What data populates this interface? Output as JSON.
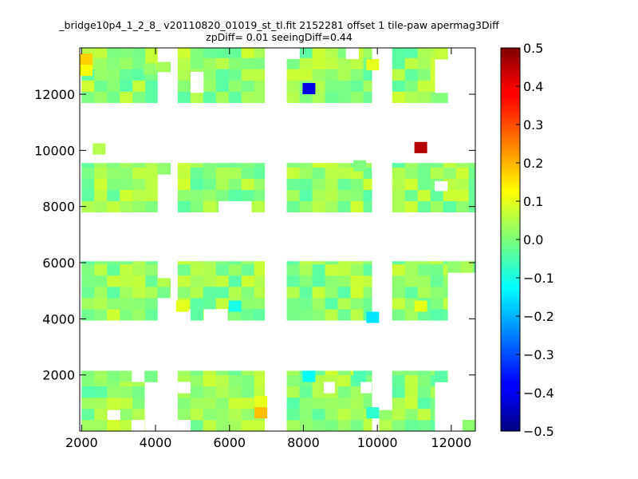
{
  "chart_data": {
    "type": "heatmap",
    "title": {
      "line1": "_bridge10p4_1_2_8_ v20110820_01019_st_tl.fit 2152281 offset 1 tile-paw apermag3Diff",
      "line2": "zpDiff= 0.01 seeingDiff=0.44"
    },
    "xlabel": "",
    "ylabel": "",
    "xlim": [
      1950,
      12650
    ],
    "ylim": [
      0,
      13650
    ],
    "xticks": [
      2000,
      4000,
      6000,
      8000,
      10000,
      12000
    ],
    "xtick_labels": [
      "2000",
      "4000",
      "6000",
      "8000",
      "10000",
      "12000"
    ],
    "yticks": [
      2000,
      4000,
      6000,
      8000,
      10000,
      12000
    ],
    "ytick_labels": [
      "2000",
      "4000",
      "6000",
      "8000",
      "10000",
      "12000"
    ],
    "colorbar": {
      "colormap": "jet",
      "range": [
        -0.5,
        0.5
      ],
      "ticks": [
        -0.5,
        -0.4,
        -0.3,
        -0.2,
        -0.1,
        0.0,
        0.1,
        0.2,
        0.3,
        0.4,
        0.5
      ],
      "tick_labels": [
        "−0.5",
        "−0.4",
        "−0.3",
        "−0.2",
        "−0.1",
        "0.0",
        "0.1",
        "0.2",
        "0.3",
        "0.4",
        "0.5"
      ]
    },
    "grid": false,
    "cell_width": 345,
    "cell_height": 400,
    "cells": [
      {
        "x": 2125,
        "y": 13250,
        "v": 0.17
      },
      {
        "x": 2125,
        "y": 12850,
        "v": 0.12
      },
      {
        "x": 3850,
        "y": 12900,
        "v": 0.02
      },
      {
        "x": 8150,
        "y": 12200,
        "v": -0.4
      },
      {
        "x": 9875,
        "y": 13050,
        "v": 0.1
      },
      {
        "x": 2475,
        "y": 10050,
        "v": 0.05
      },
      {
        "x": 11175,
        "y": 10100,
        "v": 0.45
      },
      {
        "x": 9525,
        "y": 9450,
        "v": 0.0
      },
      {
        "x": 4725,
        "y": 4450,
        "v": 0.1
      },
      {
        "x": 6150,
        "y": 4450,
        "v": -0.1
      },
      {
        "x": 9875,
        "y": 4050,
        "v": -0.15
      },
      {
        "x": 11175,
        "y": 4450,
        "v": 0.1
      },
      {
        "x": 8150,
        "y": 1950,
        "v": -0.12
      },
      {
        "x": 9525,
        "y": 1950,
        "v": -0.05
      },
      {
        "x": 6850,
        "y": 1050,
        "v": 0.1
      },
      {
        "x": 6850,
        "y": 650,
        "v": 0.19
      },
      {
        "x": 9875,
        "y": 650,
        "v": -0.08
      }
    ],
    "blocks": [
      {
        "x0": 2000,
        "x1": 4050,
        "y0": 11700,
        "y1": 13650
      },
      {
        "x0": 4050,
        "x1": 4400,
        "y0": 12800,
        "y1": 13150
      },
      {
        "x0": 4600,
        "x1": 6950,
        "y0": 11700,
        "y1": 13650
      },
      {
        "x0": 7550,
        "x1": 9850,
        "y0": 11700,
        "y1": 13650
      },
      {
        "x0": 10400,
        "x1": 11550,
        "y0": 11700,
        "y1": 13650
      },
      {
        "x0": 11550,
        "x1": 11900,
        "y0": 13250,
        "y1": 13650
      },
      {
        "x0": 11550,
        "x1": 11900,
        "y0": 11700,
        "y1": 12050
      },
      {
        "x0": 2000,
        "x1": 4050,
        "y0": 7800,
        "y1": 9550
      },
      {
        "x0": 4050,
        "x1": 4400,
        "y0": 9150,
        "y1": 9550
      },
      {
        "x0": 4600,
        "x1": 6950,
        "y0": 8200,
        "y1": 9550
      },
      {
        "x0": 4600,
        "x1": 5700,
        "y0": 7800,
        "y1": 8200
      },
      {
        "x0": 6600,
        "x1": 6950,
        "y0": 7800,
        "y1": 8200
      },
      {
        "x0": 7550,
        "x1": 9850,
        "y0": 7800,
        "y1": 9550
      },
      {
        "x0": 10400,
        "x1": 12650,
        "y0": 7800,
        "y1": 9550
      },
      {
        "x0": 2000,
        "x1": 4050,
        "y0": 3950,
        "y1": 6050
      },
      {
        "x0": 4050,
        "x1": 4400,
        "y0": 4750,
        "y1": 5450
      },
      {
        "x0": 4600,
        "x1": 6950,
        "y0": 4350,
        "y1": 6050
      },
      {
        "x0": 4950,
        "x1": 5300,
        "y0": 3950,
        "y1": 4350
      },
      {
        "x0": 5950,
        "x1": 6950,
        "y0": 3950,
        "y1": 4350
      },
      {
        "x0": 7550,
        "x1": 9850,
        "y0": 3950,
        "y1": 6050
      },
      {
        "x0": 10400,
        "x1": 11900,
        "y0": 3950,
        "y1": 6050
      },
      {
        "x0": 11900,
        "x1": 12650,
        "y0": 5650,
        "y1": 6050
      },
      {
        "x0": 2000,
        "x1": 3350,
        "y0": 1750,
        "y1": 2150
      },
      {
        "x0": 2000,
        "x1": 3700,
        "y0": 0,
        "y1": 1750
      },
      {
        "x0": 3700,
        "x1": 4050,
        "y0": 1750,
        "y1": 2150
      },
      {
        "x0": 4600,
        "x1": 6950,
        "y0": 0,
        "y1": 2150
      },
      {
        "x0": 7550,
        "x1": 9850,
        "y0": 0,
        "y1": 2150
      },
      {
        "x0": 10050,
        "x1": 10400,
        "y0": 0,
        "y1": 750
      },
      {
        "x0": 10400,
        "x1": 11550,
        "y0": 0,
        "y1": 2150
      },
      {
        "x0": 11550,
        "x1": 11900,
        "y0": 1750,
        "y1": 2150
      },
      {
        "x0": 12300,
        "x1": 12650,
        "y0": 0,
        "y1": 400
      }
    ],
    "holes": [
      {
        "x0": 2700,
        "x1": 3050,
        "y0": 400,
        "y1": 750
      },
      {
        "x0": 3350,
        "x1": 3700,
        "y0": 0,
        "y1": 400
      },
      {
        "x0": 4600,
        "x1": 4950,
        "y0": 0,
        "y1": 400
      },
      {
        "x0": 4600,
        "x1": 4950,
        "y0": 1350,
        "y1": 1750
      },
      {
        "x0": 8550,
        "x1": 8850,
        "y0": 1350,
        "y1": 1750
      },
      {
        "x0": 5650,
        "x1": 5950,
        "y0": 3950,
        "y1": 4350
      },
      {
        "x0": 9850,
        "x1": 10050,
        "y0": 9150,
        "y1": 9550
      },
      {
        "x0": 11550,
        "x1": 11900,
        "y0": 8550,
        "y1": 8900
      },
      {
        "x0": 9550,
        "x1": 9850,
        "y0": 1350,
        "y1": 1750
      },
      {
        "x0": 7550,
        "x1": 7900,
        "y0": 13250,
        "y1": 13650
      },
      {
        "x0": 9150,
        "x1": 9500,
        "y0": 13250,
        "y1": 13650
      },
      {
        "x0": 4950,
        "x1": 5300,
        "y0": 12450,
        "y1": 12800
      },
      {
        "x0": 4950,
        "x1": 5300,
        "y0": 12050,
        "y1": 12450
      }
    ]
  }
}
